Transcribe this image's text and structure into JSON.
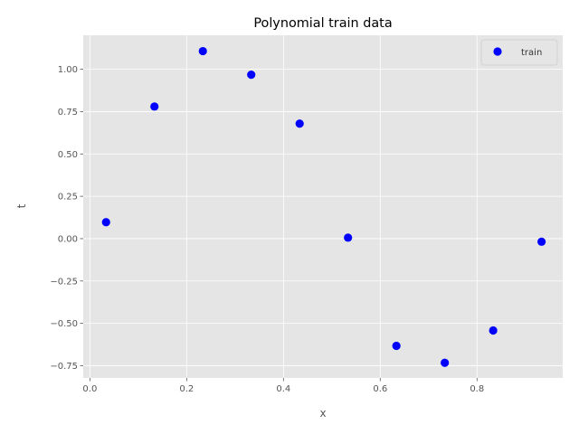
{
  "chart_data": {
    "type": "scatter",
    "title": "Polynomial train data",
    "xlabel": "x",
    "ylabel": "t",
    "xlim": [
      -0.0138,
      0.9771
    ],
    "ylim": [
      -0.8223,
      1.2007
    ],
    "xticks": [
      0.0,
      0.2,
      0.4,
      0.6,
      0.8
    ],
    "xtick_labels": [
      "0.0",
      "0.2",
      "0.4",
      "0.6",
      "0.8"
    ],
    "yticks": [
      -0.75,
      -0.5,
      -0.25,
      0.0,
      0.25,
      0.5,
      0.75,
      1.0
    ],
    "ytick_labels": [
      "−0.75",
      "−0.50",
      "−0.25",
      "0.00",
      "0.25",
      "0.50",
      "0.75",
      "1.00"
    ],
    "grid": true,
    "legend_position": "top-right",
    "series": [
      {
        "name": "train",
        "color": "#0000ff",
        "marker": "circle",
        "points": [
          {
            "x": 0.0334,
            "y": 0.097
          },
          {
            "x": 0.1334,
            "y": 0.78
          },
          {
            "x": 0.2334,
            "y": 1.107
          },
          {
            "x": 0.3334,
            "y": 0.968
          },
          {
            "x": 0.4334,
            "y": 0.679
          },
          {
            "x": 0.5334,
            "y": 0.006
          },
          {
            "x": 0.6334,
            "y": -0.633
          },
          {
            "x": 0.7334,
            "y": -0.733
          },
          {
            "x": 0.8334,
            "y": -0.542
          },
          {
            "x": 0.9334,
            "y": -0.018
          }
        ]
      }
    ],
    "colors": {
      "plot_background": "#e5e5e5",
      "grid": "#ffffff",
      "text": "#555555"
    }
  }
}
